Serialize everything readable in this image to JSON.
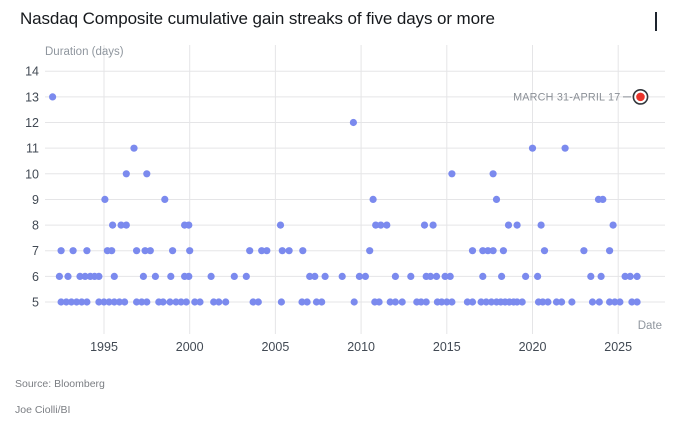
{
  "title": "Nasdaq Composite cumulative gain streaks of five days or more",
  "footer": {
    "source": "Source: Bloomberg",
    "credit": "Joe Ciolli/BI"
  },
  "colors": {
    "point": "#7b8aee",
    "highlight": "#ea342b",
    "highlight_ring": "#33373c",
    "gridline": "#e5e5e7",
    "title_text": "#16191d",
    "tick_text": "#424a54",
    "axis_label_text": "#8f969e",
    "annotation_text": "#8a8f96",
    "footer_text": "#7b7e83",
    "brand_bar": "#1d242e"
  },
  "chart_data": {
    "type": "scatter",
    "title": "Nasdaq Composite cumulative gain streaks of five days or more",
    "xlabel": "Date",
    "ylabel": "Duration (days)",
    "grid": true,
    "legend": false,
    "xlim": [
      1991.6,
      2027.7
    ],
    "ylim": [
      5,
      14
    ],
    "x_ticks": [
      1995,
      2000,
      2005,
      2010,
      2015,
      2020,
      2025
    ],
    "y_ticks": [
      5,
      6,
      7,
      8,
      9,
      10,
      11,
      12,
      13,
      14
    ],
    "points_by_duration": {
      "13": [
        1992.0
      ],
      "12": [
        2009.55
      ],
      "11": [
        1996.75,
        2020.0,
        2021.9
      ],
      "10": [
        1996.3,
        1997.5,
        2015.3,
        2017.7
      ],
      "9": [
        1995.05,
        1998.55,
        2010.7,
        2017.9,
        2023.85,
        2024.1
      ],
      "8": [
        1995.5,
        1996.0,
        1996.3,
        1999.7,
        1999.95,
        2005.3,
        2010.85,
        2011.15,
        2011.5,
        2013.7,
        2014.2,
        2018.6,
        2019.1,
        2020.5,
        2024.7
      ],
      "7": [
        1992.5,
        1993.2,
        1994.0,
        1995.2,
        1995.45,
        1996.9,
        1997.4,
        1997.7,
        1999.0,
        2000.0,
        2003.5,
        2004.2,
        2004.5,
        2005.4,
        2005.8,
        2006.6,
        2010.5,
        2016.5,
        2017.1,
        2017.4,
        2017.7,
        2018.3,
        2020.7,
        2023.0,
        2024.5
      ],
      "6": [
        1992.4,
        1992.9,
        1993.6,
        1993.9,
        1994.2,
        1994.45,
        1994.7,
        1995.6,
        1997.3,
        1998.0,
        1998.9,
        1999.7,
        1999.95,
        2001.25,
        2002.6,
        2003.3,
        2007.0,
        2007.3,
        2007.9,
        2008.9,
        2009.9,
        2010.25,
        2012.0,
        2012.9,
        2013.8,
        2014.05,
        2014.4,
        2014.9,
        2015.2,
        2017.1,
        2018.2,
        2019.6,
        2020.3,
        2023.4,
        2024.0,
        2025.4,
        2025.7,
        2026.1
      ],
      "5": [
        1992.5,
        1992.8,
        1993.1,
        1993.4,
        1993.7,
        1994.0,
        1994.7,
        1995.0,
        1995.3,
        1995.6,
        1995.9,
        1996.2,
        1996.9,
        1997.2,
        1997.5,
        1998.2,
        1998.45,
        1998.85,
        1999.2,
        1999.5,
        1999.8,
        2000.3,
        2000.6,
        2001.4,
        2001.7,
        2002.1,
        2003.7,
        2004.0,
        2005.35,
        2006.55,
        2006.85,
        2007.4,
        2007.7,
        2009.6,
        2010.8,
        2011.05,
        2011.7,
        2012.0,
        2012.4,
        2013.25,
        2013.5,
        2013.8,
        2014.45,
        2014.7,
        2015.0,
        2015.3,
        2016.2,
        2016.5,
        2017.0,
        2017.3,
        2017.6,
        2017.9,
        2018.15,
        2018.4,
        2018.65,
        2018.9,
        2019.1,
        2019.4,
        2020.35,
        2020.6,
        2020.9,
        2021.4,
        2021.7,
        2022.3,
        2023.5,
        2023.9,
        2024.5,
        2024.8,
        2025.1,
        2025.8,
        2026.1
      ],
      "highlight_note": []
    },
    "highlight": {
      "label": "MARCH 31-APRIL 17",
      "year": 2026.3,
      "duration": 13
    }
  }
}
